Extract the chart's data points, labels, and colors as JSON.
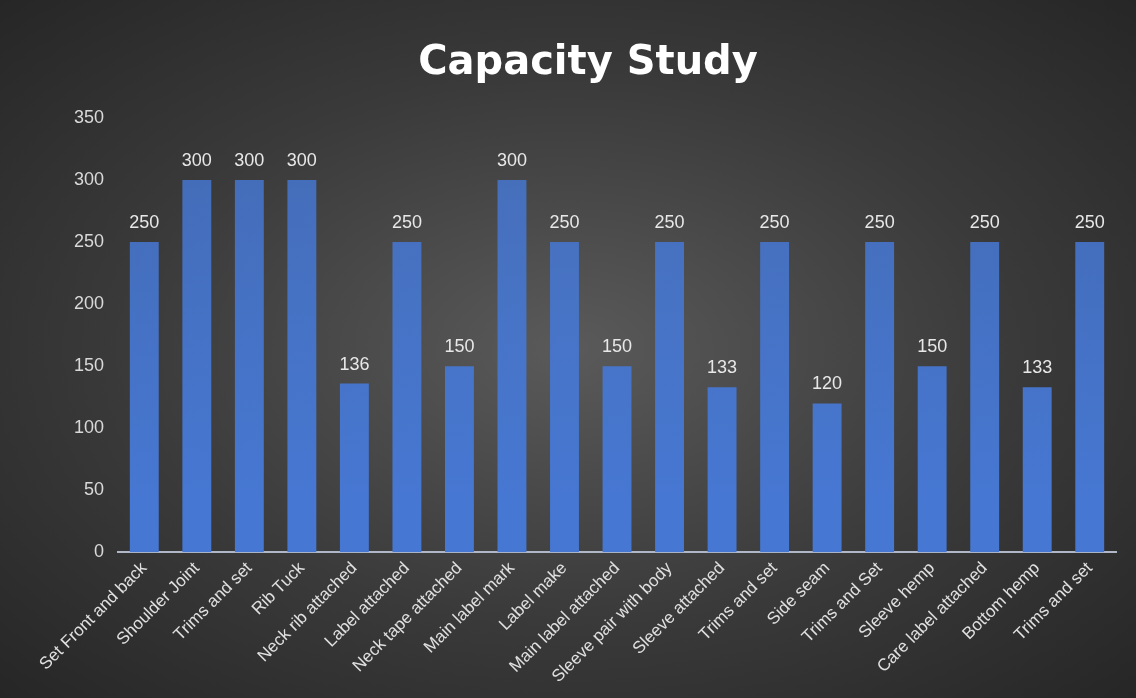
{
  "chart_data": {
    "type": "bar",
    "title": "Capacity Study",
    "categories": [
      "Set Front and back",
      "Shoulder Joint",
      "Trims and set",
      "Rib Tuck",
      "Neck rib attached",
      "Label attached",
      "Neck tape attached",
      "Main label mark",
      "Label make",
      "Main label attached",
      "Sleeve pair with body",
      "Sleeve attached",
      "Trims and set",
      "Side seam",
      "Trims and Set",
      "Sleeve hemp",
      "Care label attached",
      "Bottom hemp",
      "Trims and set"
    ],
    "values": [
      250,
      300,
      300,
      300,
      136,
      250,
      150,
      300,
      250,
      150,
      250,
      133,
      250,
      120,
      250,
      150,
      250,
      133,
      250
    ],
    "color": "#4677d2",
    "ylim": [
      0,
      350
    ],
    "yticks": [
      0,
      50,
      100,
      150,
      200,
      250,
      300,
      350
    ],
    "grid": false,
    "legend": false,
    "data_labels": true
  }
}
